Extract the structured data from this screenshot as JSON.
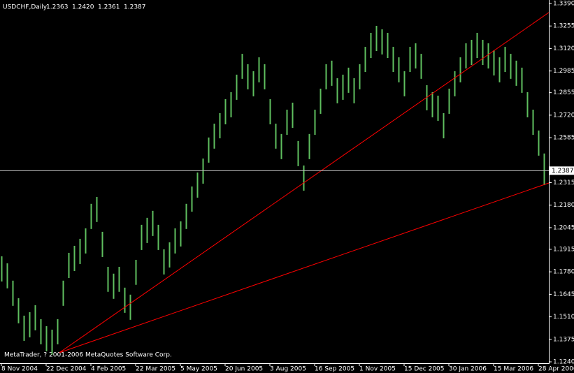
{
  "chart_data": {
    "type": "ohlc",
    "title": "USDCHF,Daily",
    "header_ohlc": [
      "1.2363",
      "1.2420",
      "1.2361",
      "1.2387"
    ],
    "footer": "MetaTrader, ? 2001-2006 MetaQuotes Software Corp.",
    "categories": [
      "8 Nov 2004",
      null,
      null,
      null,
      null,
      null,
      null,
      null,
      "22 Dec 2004",
      null,
      null,
      null,
      null,
      null,
      null,
      null,
      "4 Feb 2005",
      null,
      null,
      null,
      null,
      null,
      null,
      null,
      "22 Mar 2005",
      null,
      null,
      null,
      null,
      null,
      null,
      null,
      "5 May 2005",
      null,
      null,
      null,
      null,
      null,
      null,
      null,
      "20 Jun 2005",
      null,
      null,
      null,
      null,
      null,
      null,
      null,
      "3 Aug 2005",
      null,
      null,
      null,
      null,
      null,
      null,
      null,
      "16 Sep 2005",
      null,
      null,
      null,
      null,
      null,
      null,
      null,
      "1 Nov 2005",
      null,
      null,
      null,
      null,
      null,
      null,
      null,
      "15 Dec 2005",
      null,
      null,
      null,
      null,
      null,
      null,
      null,
      "30 Jan 2006",
      null,
      null,
      null,
      null,
      null,
      null,
      null,
      "15 Mar 2006",
      null,
      null,
      null,
      null,
      null,
      null,
      null,
      "28 Apr 2006",
      null
    ],
    "high": [
      1.1873,
      1.1831,
      1.1727,
      1.1622,
      1.1517,
      1.1538,
      1.158,
      1.1496,
      1.1454,
      1.1433,
      1.1496,
      1.1727,
      1.1894,
      1.1936,
      1.1978,
      1.2041,
      1.2188,
      1.2229,
      1.202,
      1.181,
      1.1769,
      1.181,
      1.1685,
      1.1643,
      1.1852,
      1.2062,
      1.2104,
      1.2146,
      1.2062,
      1.1915,
      1.1957,
      1.2041,
      1.2083,
      1.2188,
      1.2292,
      1.2376,
      1.246,
      1.2586,
      1.2669,
      1.2732,
      1.2816,
      1.2858,
      1.2963,
      1.3088,
      1.3026,
      1.2984,
      1.3067,
      1.3026,
      1.2816,
      1.2669,
      1.2607,
      1.2753,
      1.2795,
      1.2565,
      1.2418,
      1.2607,
      1.2753,
      1.2879,
      1.3026,
      1.3047,
      1.2942,
      1.2963,
      1.3005,
      1.2942,
      1.3026,
      1.313,
      1.3214,
      1.3256,
      1.3235,
      1.3214,
      1.313,
      1.3067,
      1.2984,
      1.313,
      1.3151,
      1.3088,
      1.29,
      1.2858,
      1.2837,
      1.2732,
      1.2879,
      1.2984,
      1.3067,
      1.3151,
      1.3172,
      1.3214,
      1.3172,
      1.3151,
      1.3109,
      1.3067,
      1.313,
      1.3088,
      1.3047,
      1.3005,
      1.2858,
      1.2753,
      1.2628,
      1.249
    ],
    "low": [
      1.1722,
      1.1681,
      1.1576,
      1.1471,
      1.1366,
      1.1387,
      1.1429,
      1.1345,
      1.1303,
      1.1283,
      1.1345,
      1.1576,
      1.1743,
      1.1785,
      1.1827,
      1.189,
      1.2037,
      1.2079,
      1.1869,
      1.166,
      1.1618,
      1.166,
      1.1534,
      1.1492,
      1.1702,
      1.1911,
      1.1953,
      1.1995,
      1.1911,
      1.1764,
      1.1806,
      1.189,
      1.1932,
      1.2037,
      1.2141,
      1.2225,
      1.2309,
      1.2435,
      1.2519,
      1.2581,
      1.2665,
      1.2707,
      1.2812,
      1.2938,
      1.2875,
      1.2833,
      1.2917,
      1.2875,
      1.2665,
      1.2519,
      1.2456,
      1.2602,
      1.2644,
      1.2414,
      1.2267,
      1.2456,
      1.2602,
      1.2728,
      1.2875,
      1.2896,
      1.2791,
      1.2812,
      1.2854,
      1.2791,
      1.2875,
      1.2979,
      1.3063,
      1.3105,
      1.3084,
      1.3063,
      1.2979,
      1.2917,
      1.2833,
      1.2979,
      1.3,
      1.2938,
      1.2749,
      1.2707,
      1.2686,
      1.2581,
      1.2728,
      1.2833,
      1.2917,
      1.3,
      1.3021,
      1.3063,
      1.3021,
      1.3,
      1.2958,
      1.2917,
      1.2979,
      1.2938,
      1.2896,
      1.2854,
      1.2707,
      1.2602,
      1.2477,
      1.23
    ],
    "color": "#5fbf5f",
    "trendlines": [
      {
        "x": [
          10.375,
          97.875
        ],
        "y": [
          1.1295,
          1.3336
        ],
        "color": "#ff0000"
      },
      {
        "x": [
          10.375,
          97.875
        ],
        "y": [
          1.1295,
          1.2313
        ],
        "color": "#ff0000"
      }
    ],
    "last_price": {
      "value": 1.2387,
      "label": "1.2387"
    },
    "ylim": [
      1.124,
      1.339
    ],
    "yticks": [
      {
        "value": 1.339,
        "label": "1.3390"
      },
      1.3255,
      {
        "value": 1.312,
        "label": "1.3120"
      },
      1.2985,
      1.2855,
      {
        "value": 1.272,
        "label": "1.2720"
      },
      1.2585,
      1.2315,
      {
        "value": 1.218,
        "label": "1.2180"
      },
      1.2045,
      1.1915,
      {
        "value": 1.178,
        "label": "1.1780"
      },
      1.1645,
      {
        "value": 1.151,
        "label": "1.1510"
      },
      1.1375,
      {
        "value": 1.124,
        "label": "1.1240"
      }
    ]
  }
}
